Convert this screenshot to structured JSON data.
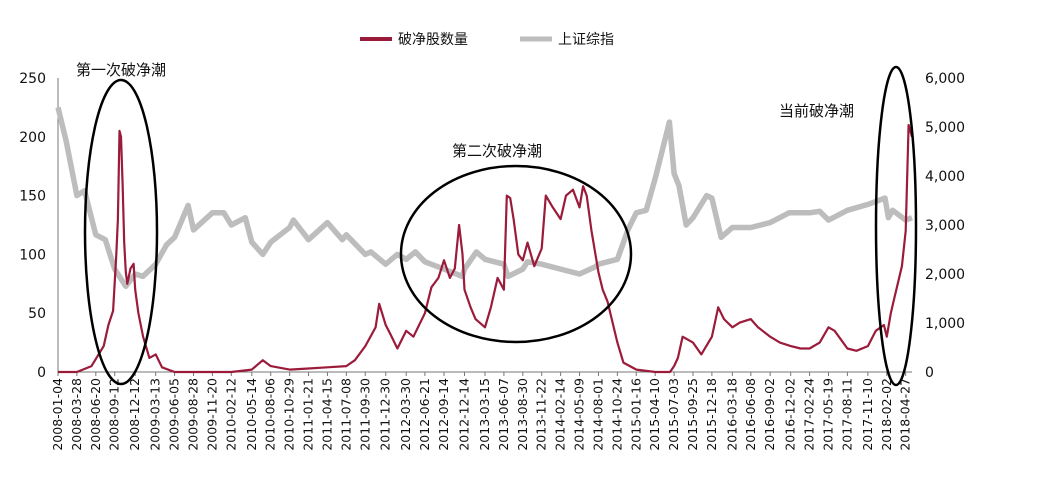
{
  "chart_data": {
    "type": "line",
    "title": "",
    "xlabel": "",
    "ylabel": "",
    "ylabel_right": "",
    "legend_position": "top-center",
    "grid": false,
    "ylim": [
      0,
      250
    ],
    "ylim_right": [
      0,
      6000
    ],
    "y_ticks_left": [
      "0",
      "50",
      "100",
      "150",
      "200",
      "250"
    ],
    "y_ticks_right": [
      "0",
      "1,000",
      "2,000",
      "3,000",
      "4,000",
      "5,000",
      "6,000"
    ],
    "x_tick_labels": [
      "2008-01-04",
      "2008-03-28",
      "2008-06-20",
      "2008-09-12",
      "2008-12-12",
      "2009-03-13",
      "2009-06-05",
      "2009-08-28",
      "2009-11-20",
      "2010-02-12",
      "2010-05-14",
      "2010-08-06",
      "2010-10-29",
      "2011-01-21",
      "2011-04-15",
      "2011-07-08",
      "2011-09-30",
      "2011-12-30",
      "2012-03-30",
      "2012-06-21",
      "2012-09-14",
      "2012-12-14",
      "2013-03-15",
      "2013-06-07",
      "2013-08-30",
      "2013-11-22",
      "2014-02-14",
      "2014-05-09",
      "2014-08-01",
      "2014-10-24",
      "2015-01-16",
      "2015-04-10",
      "2015-07-03",
      "2015-09-25",
      "2015-12-18",
      "2016-03-18",
      "2016-06-08",
      "2016-09-02",
      "2016-12-02",
      "2017-02-24",
      "2017-05-19",
      "2017-08-11",
      "2017-11-10",
      "2018-02-02",
      "2018-04-27"
    ],
    "series": [
      {
        "name": "破净股数量",
        "axis": "left",
        "color": "#9b1b3b",
        "points": [
          [
            "2008-01-04",
            0
          ],
          [
            "2008-03-28",
            0
          ],
          [
            "2008-06-01",
            5
          ],
          [
            "2008-07-25",
            22
          ],
          [
            "2008-08-15",
            40
          ],
          [
            "2008-09-05",
            52
          ],
          [
            "2008-09-19",
            100
          ],
          [
            "2008-09-26",
            130
          ],
          [
            "2008-10-03",
            205
          ],
          [
            "2008-10-10",
            200
          ],
          [
            "2008-10-17",
            160
          ],
          [
            "2008-10-24",
            110
          ],
          [
            "2008-10-31",
            85
          ],
          [
            "2008-11-07",
            75
          ],
          [
            "2008-11-21",
            88
          ],
          [
            "2008-12-05",
            92
          ],
          [
            "2008-12-12",
            70
          ],
          [
            "2008-12-26",
            50
          ],
          [
            "2009-01-16",
            30
          ],
          [
            "2009-02-13",
            12
          ],
          [
            "2009-03-13",
            15
          ],
          [
            "2009-04-10",
            4
          ],
          [
            "2009-06-05",
            0
          ],
          [
            "2009-08-28",
            0
          ],
          [
            "2009-11-20",
            0
          ],
          [
            "2010-02-12",
            0
          ],
          [
            "2010-05-14",
            2
          ],
          [
            "2010-07-02",
            10
          ],
          [
            "2010-08-06",
            5
          ],
          [
            "2010-10-29",
            2
          ],
          [
            "2011-01-21",
            3
          ],
          [
            "2011-04-15",
            4
          ],
          [
            "2011-07-08",
            5
          ],
          [
            "2011-08-15",
            10
          ],
          [
            "2011-09-30",
            22
          ],
          [
            "2011-11-15",
            38
          ],
          [
            "2011-12-01",
            58
          ],
          [
            "2011-12-30",
            40
          ],
          [
            "2012-01-20",
            32
          ],
          [
            "2012-02-20",
            20
          ],
          [
            "2012-03-30",
            35
          ],
          [
            "2012-05-01",
            30
          ],
          [
            "2012-06-21",
            50
          ],
          [
            "2012-07-20",
            72
          ],
          [
            "2012-08-20",
            80
          ],
          [
            "2012-09-14",
            95
          ],
          [
            "2012-10-10",
            80
          ],
          [
            "2012-11-01",
            88
          ],
          [
            "2012-11-20",
            125
          ],
          [
            "2012-12-05",
            100
          ],
          [
            "2012-12-14",
            70
          ],
          [
            "2013-01-10",
            55
          ],
          [
            "2013-02-01",
            45
          ],
          [
            "2013-03-15",
            38
          ],
          [
            "2013-04-10",
            55
          ],
          [
            "2013-05-10",
            80
          ],
          [
            "2013-06-07",
            70
          ],
          [
            "2013-06-20",
            150
          ],
          [
            "2013-07-05",
            148
          ],
          [
            "2013-07-20",
            130
          ],
          [
            "2013-08-10",
            100
          ],
          [
            "2013-08-30",
            95
          ],
          [
            "2013-09-20",
            110
          ],
          [
            "2013-10-20",
            90
          ],
          [
            "2013-11-22",
            105
          ],
          [
            "2013-12-10",
            150
          ],
          [
            "2014-01-10",
            140
          ],
          [
            "2014-02-14",
            130
          ],
          [
            "2014-03-10",
            150
          ],
          [
            "2014-04-10",
            155
          ],
          [
            "2014-05-09",
            140
          ],
          [
            "2014-05-25",
            158
          ],
          [
            "2014-06-10",
            150
          ],
          [
            "2014-07-01",
            120
          ],
          [
            "2014-08-01",
            85
          ],
          [
            "2014-08-20",
            70
          ],
          [
            "2014-09-10",
            60
          ],
          [
            "2014-10-24",
            25
          ],
          [
            "2014-11-20",
            8
          ],
          [
            "2015-01-16",
            2
          ],
          [
            "2015-04-10",
            0
          ],
          [
            "2015-06-15",
            0
          ],
          [
            "2015-07-03",
            5
          ],
          [
            "2015-07-20",
            12
          ],
          [
            "2015-08-10",
            30
          ],
          [
            "2015-09-25",
            25
          ],
          [
            "2015-11-01",
            15
          ],
          [
            "2015-12-18",
            30
          ],
          [
            "2016-01-15",
            55
          ],
          [
            "2016-02-10",
            45
          ],
          [
            "2016-03-18",
            38
          ],
          [
            "2016-04-20",
            42
          ],
          [
            "2016-06-08",
            45
          ],
          [
            "2016-07-10",
            38
          ],
          [
            "2016-09-02",
            30
          ],
          [
            "2016-10-15",
            25
          ],
          [
            "2016-12-02",
            22
          ],
          [
            "2017-01-15",
            20
          ],
          [
            "2017-02-24",
            20
          ],
          [
            "2017-04-10",
            25
          ],
          [
            "2017-05-19",
            38
          ],
          [
            "2017-06-15",
            35
          ],
          [
            "2017-08-11",
            20
          ],
          [
            "2017-09-20",
            18
          ],
          [
            "2017-11-10",
            22
          ],
          [
            "2017-12-15",
            35
          ],
          [
            "2018-01-20",
            40
          ],
          [
            "2018-02-02",
            30
          ],
          [
            "2018-02-20",
            50
          ],
          [
            "2018-03-10",
            65
          ],
          [
            "2018-04-10",
            90
          ],
          [
            "2018-04-27",
            120
          ],
          [
            "2018-05-10",
            210
          ],
          [
            "2018-05-25",
            200
          ]
        ]
      },
      {
        "name": "上证综指",
        "axis": "right",
        "color": "#bdbdbd",
        "points": [
          [
            "2008-01-04",
            5400
          ],
          [
            "2008-02-10",
            4700
          ],
          [
            "2008-03-28",
            3600
          ],
          [
            "2008-05-01",
            3700
          ],
          [
            "2008-06-20",
            2800
          ],
          [
            "2008-08-01",
            2700
          ],
          [
            "2008-09-12",
            2100
          ],
          [
            "2008-10-31",
            1750
          ],
          [
            "2008-12-12",
            2000
          ],
          [
            "2009-01-15",
            1950
          ],
          [
            "2009-03-13",
            2200
          ],
          [
            "2009-05-01",
            2600
          ],
          [
            "2009-06-05",
            2750
          ],
          [
            "2009-08-04",
            3400
          ],
          [
            "2009-08-28",
            2900
          ],
          [
            "2009-11-20",
            3250
          ],
          [
            "2010-01-10",
            3250
          ],
          [
            "2010-02-12",
            3000
          ],
          [
            "2010-04-15",
            3150
          ],
          [
            "2010-05-14",
            2650
          ],
          [
            "2010-07-02",
            2400
          ],
          [
            "2010-08-06",
            2650
          ],
          [
            "2010-10-29",
            2950
          ],
          [
            "2010-11-15",
            3100
          ],
          [
            "2011-01-21",
            2700
          ],
          [
            "2011-04-15",
            3050
          ],
          [
            "2011-06-20",
            2700
          ],
          [
            "2011-07-08",
            2800
          ],
          [
            "2011-09-30",
            2400
          ],
          [
            "2011-10-25",
            2450
          ],
          [
            "2011-12-30",
            2200
          ],
          [
            "2012-02-20",
            2400
          ],
          [
            "2012-03-30",
            2300
          ],
          [
            "2012-05-10",
            2450
          ],
          [
            "2012-06-21",
            2250
          ],
          [
            "2012-09-14",
            2100
          ],
          [
            "2012-12-04",
            1950
          ],
          [
            "2012-12-14",
            2100
          ],
          [
            "2013-02-05",
            2450
          ],
          [
            "2013-03-15",
            2300
          ],
          [
            "2013-06-07",
            2200
          ],
          [
            "2013-06-25",
            1950
          ],
          [
            "2013-08-30",
            2100
          ],
          [
            "2013-09-20",
            2250
          ],
          [
            "2013-11-22",
            2200
          ],
          [
            "2014-02-14",
            2100
          ],
          [
            "2014-05-09",
            2000
          ],
          [
            "2014-07-20",
            2150
          ],
          [
            "2014-08-01",
            2200
          ],
          [
            "2014-10-24",
            2300
          ],
          [
            "2014-12-10",
            2900
          ],
          [
            "2015-01-16",
            3250
          ],
          [
            "2015-03-01",
            3300
          ],
          [
            "2015-04-10",
            3950
          ],
          [
            "2015-06-12",
            5100
          ],
          [
            "2015-07-03",
            4050
          ],
          [
            "2015-07-25",
            3800
          ],
          [
            "2015-08-26",
            3000
          ],
          [
            "2015-09-25",
            3150
          ],
          [
            "2015-11-25",
            3600
          ],
          [
            "2015-12-18",
            3550
          ],
          [
            "2016-01-28",
            2750
          ],
          [
            "2016-03-18",
            2950
          ],
          [
            "2016-06-08",
            2950
          ],
          [
            "2016-09-02",
            3050
          ],
          [
            "2016-11-25",
            3250
          ],
          [
            "2016-12-02",
            3250
          ],
          [
            "2017-02-24",
            3250
          ],
          [
            "2017-04-10",
            3280
          ],
          [
            "2017-05-19",
            3100
          ],
          [
            "2017-08-11",
            3300
          ],
          [
            "2017-11-10",
            3420
          ],
          [
            "2018-01-25",
            3550
          ],
          [
            "2018-02-09",
            3150
          ],
          [
            "2018-02-28",
            3300
          ],
          [
            "2018-04-27",
            3100
          ],
          [
            "2018-05-25",
            3150
          ]
        ]
      }
    ],
    "annotations": [
      {
        "text": "第一次破净潮"
      },
      {
        "text": "第二次破净潮"
      },
      {
        "text": "当前破净潮"
      }
    ]
  }
}
